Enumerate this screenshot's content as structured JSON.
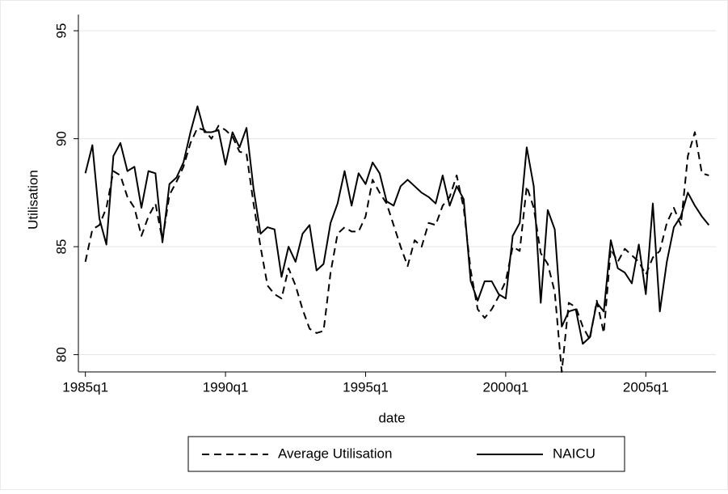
{
  "chart_data": {
    "type": "line",
    "x_label": "date",
    "y_label": "Utilisation",
    "x": [
      1985,
      1985.25,
      1985.5,
      1985.75,
      1986,
      1986.25,
      1986.5,
      1986.75,
      1987,
      1987.25,
      1987.5,
      1987.75,
      1988,
      1988.25,
      1988.5,
      1988.75,
      1989,
      1989.25,
      1989.5,
      1989.75,
      1990,
      1990.25,
      1990.5,
      1990.75,
      1991,
      1991.25,
      1991.5,
      1991.75,
      1992,
      1992.25,
      1992.5,
      1992.75,
      1993,
      1993.25,
      1993.5,
      1993.75,
      1994,
      1994.25,
      1994.5,
      1994.75,
      1995,
      1995.25,
      1995.5,
      1995.75,
      1996,
      1996.25,
      1996.5,
      1996.75,
      1997,
      1997.25,
      1997.5,
      1997.75,
      1998,
      1998.25,
      1998.5,
      1998.75,
      1999,
      1999.25,
      1999.5,
      1999.75,
      2000,
      2000.25,
      2000.5,
      2000.75,
      2001,
      2001.25,
      2001.5,
      2001.75,
      2002,
      2002.25,
      2002.5,
      2002.75,
      2003,
      2003.25,
      2003.5,
      2003.75,
      2004,
      2004.25,
      2004.5,
      2004.75,
      2005,
      2005.25,
      2005.5,
      2005.75,
      2006,
      2006.25,
      2006.5,
      2006.75,
      2007,
      2007.25
    ],
    "series": [
      {
        "name": "Average Utilisation",
        "color": "#000000",
        "dashed": true,
        "values": [
          84.3,
          85.8,
          86.0,
          86.8,
          88.5,
          88.3,
          87.3,
          86.8,
          85.5,
          86.4,
          87.0,
          85.3,
          87.4,
          88.0,
          88.7,
          89.8,
          90.5,
          90.4,
          90.0,
          90.6,
          90.4,
          90.1,
          89.4,
          89.3,
          87.0,
          85.0,
          83.2,
          82.8,
          82.6,
          84.0,
          83.2,
          82.1,
          81.2,
          81.0,
          81.1,
          83.8,
          85.6,
          85.9,
          85.7,
          85.7,
          86.4,
          88.1,
          87.5,
          87.0,
          86.0,
          85.0,
          84.1,
          85.3,
          85.0,
          86.1,
          86.0,
          86.9,
          87.3,
          88.3,
          86.8,
          83.9,
          82.1,
          81.7,
          82.1,
          82.7,
          83.4,
          85.0,
          84.8,
          87.8,
          86.8,
          84.7,
          84.2,
          82.9,
          79.2,
          82.4,
          82.2,
          81.3,
          80.7,
          82.5,
          81.0,
          84.9,
          84.3,
          84.9,
          84.6,
          84.3,
          83.7,
          84.5,
          84.8,
          86.1,
          86.8,
          86.0,
          89.2,
          90.3,
          88.4,
          88.3
        ]
      },
      {
        "name": "NAICU",
        "color": "#000000",
        "dashed": false,
        "values": [
          88.4,
          89.7,
          86.3,
          85.1,
          89.2,
          89.8,
          88.5,
          88.7,
          86.8,
          88.5,
          88.4,
          85.2,
          87.9,
          88.2,
          88.9,
          90.3,
          91.5,
          90.3,
          90.3,
          90.4,
          88.8,
          90.3,
          89.6,
          90.5,
          87.7,
          85.6,
          85.9,
          85.8,
          83.6,
          85.0,
          84.3,
          85.6,
          86.0,
          83.9,
          84.2,
          86.1,
          87.0,
          88.5,
          86.9,
          88.4,
          87.9,
          88.9,
          88.4,
          87.1,
          86.9,
          87.8,
          88.1,
          87.8,
          87.5,
          87.3,
          87.0,
          88.3,
          86.9,
          87.8,
          87.2,
          83.4,
          82.5,
          83.4,
          83.4,
          82.8,
          82.6,
          85.5,
          86.1,
          89.6,
          87.8,
          82.4,
          86.7,
          85.8,
          81.3,
          82.0,
          82.1,
          80.5,
          80.8,
          82.4,
          82.0,
          85.3,
          84.0,
          83.8,
          83.3,
          85.1,
          82.8,
          87.0,
          82.0,
          84.3,
          85.9,
          86.4,
          87.5,
          86.9,
          86.4,
          86.0
        ]
      }
    ],
    "xlim": [
      1984.75,
      2007.5
    ],
    "xticks": [
      {
        "value": 1985,
        "label": "1985q1"
      },
      {
        "value": 1990,
        "label": "1990q1"
      },
      {
        "value": 1995,
        "label": "1995q1"
      },
      {
        "value": 2000,
        "label": "2000q1"
      },
      {
        "value": 2005,
        "label": "2005q1"
      }
    ],
    "ylim": [
      79.2,
      95.75
    ],
    "yticks": [
      80,
      85,
      90,
      95
    ],
    "grid": true,
    "legend": "bottom"
  }
}
